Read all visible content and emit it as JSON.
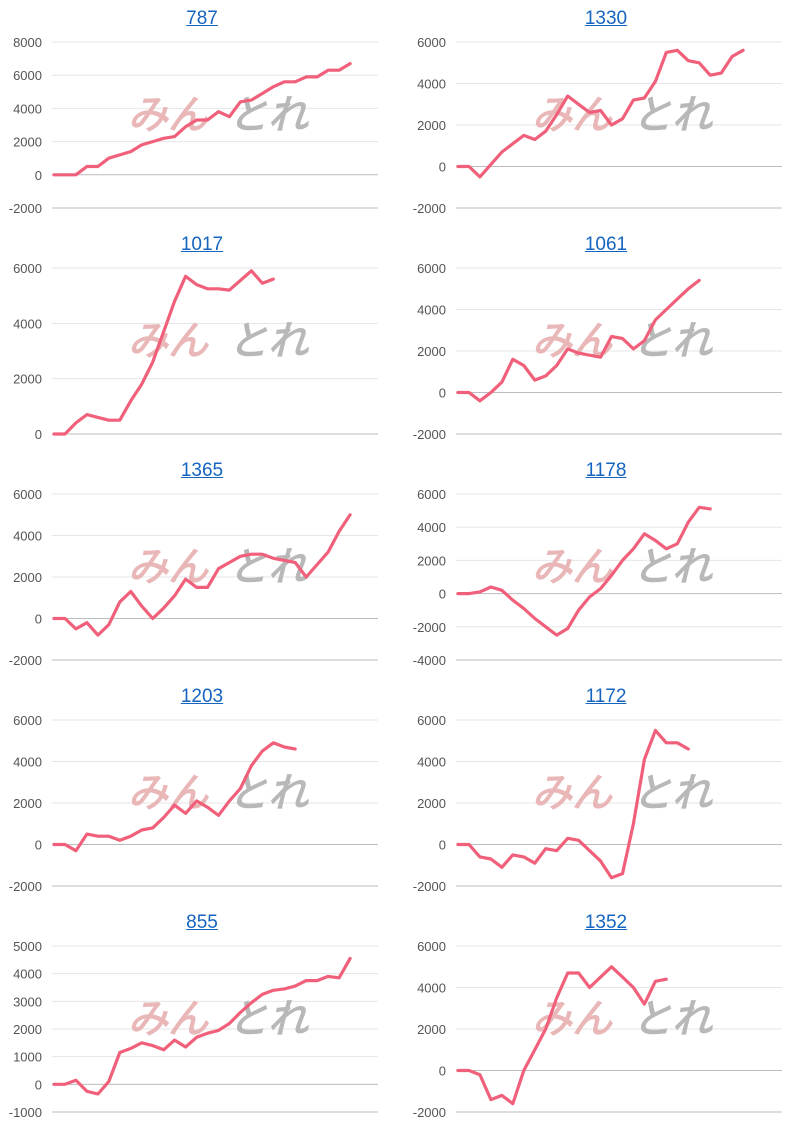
{
  "style": {
    "line_color": "#f0607a",
    "grid_color": "#e6e6e6",
    "axis_color": "#bdbdbd",
    "link_color": "#1565c0",
    "watermark_pink": "#e8b4b4",
    "watermark_gray": "#b5b5b5"
  },
  "chart_data": [
    {
      "type": "line",
      "title": "787",
      "ylim": [
        -2000,
        8000
      ],
      "yticks": [
        "8000",
        "6000",
        "4000",
        "2000",
        "0",
        "-2000"
      ],
      "grid": true,
      "series": [
        {
          "values": [
            0,
            0,
            0,
            500,
            500,
            1000,
            1200,
            1400,
            1800,
            2000,
            2200,
            2300,
            2900,
            3300,
            3300,
            3800,
            3500,
            4400,
            4500,
            4900,
            5300,
            5600,
            5600,
            5900,
            5900,
            6300,
            6300,
            6700
          ]
        }
      ]
    },
    {
      "type": "line",
      "title": "1330",
      "ylim": [
        -2000,
        6000
      ],
      "yticks": [
        "6000",
        "4000",
        "2000",
        "0",
        "-2000"
      ],
      "grid": true,
      "series": [
        {
          "values": [
            0,
            0,
            -500,
            100,
            700,
            1100,
            1500,
            1300,
            1700,
            2500,
            3400,
            3000,
            2600,
            2700,
            2000,
            2300,
            3200,
            3300,
            4100,
            5500,
            5600,
            5100,
            5000,
            4400,
            4500,
            5300,
            5600
          ]
        }
      ]
    },
    {
      "type": "line",
      "title": "1017",
      "ylim": [
        0,
        6000
      ],
      "yticks": [
        "6000",
        "4000",
        "2000",
        "0"
      ],
      "grid": true,
      "series": [
        {
          "values": [
            0,
            0,
            400,
            700,
            600,
            500,
            500,
            1200,
            1800,
            2600,
            3700,
            4800,
            5700,
            5400,
            5250,
            5250,
            5200,
            5550,
            5900,
            5450,
            5600
          ]
        }
      ]
    },
    {
      "type": "line",
      "title": "1061",
      "ylim": [
        -2000,
        6000
      ],
      "yticks": [
        "6000",
        "4000",
        "2000",
        "0",
        "-2000"
      ],
      "grid": true,
      "series": [
        {
          "values": [
            0,
            0,
            -400,
            0,
            500,
            1600,
            1300,
            600,
            800,
            1300,
            2100,
            1900,
            1800,
            1700,
            2700,
            2600,
            2100,
            2500,
            3500,
            4000,
            4500,
            5000,
            5400
          ]
        }
      ]
    },
    {
      "type": "line",
      "title": "1365",
      "ylim": [
        -2000,
        6000
      ],
      "yticks": [
        "6000",
        "4000",
        "2000",
        "0",
        "-2000"
      ],
      "grid": true,
      "series": [
        {
          "values": [
            0,
            0,
            -500,
            -200,
            -800,
            -300,
            800,
            1300,
            600,
            0,
            500,
            1100,
            1900,
            1500,
            1500,
            2400,
            2700,
            3000,
            3100,
            3100,
            2900,
            2800,
            2700,
            2000,
            2600,
            3200,
            4200,
            5000
          ]
        }
      ]
    },
    {
      "type": "line",
      "title": "1178",
      "ylim": [
        -4000,
        6000
      ],
      "yticks": [
        "6000",
        "4000",
        "2000",
        "0",
        "-2000",
        "-4000"
      ],
      "grid": true,
      "series": [
        {
          "values": [
            0,
            0,
            100,
            400,
            200,
            -400,
            -900,
            -1500,
            -2000,
            -2500,
            -2100,
            -1000,
            -200,
            300,
            1100,
            2000,
            2700,
            3600,
            3200,
            2700,
            3000,
            4300,
            5200,
            5100
          ]
        }
      ]
    },
    {
      "type": "line",
      "title": "1203",
      "ylim": [
        -2000,
        6000
      ],
      "yticks": [
        "6000",
        "4000",
        "2000",
        "0",
        "-2000"
      ],
      "grid": true,
      "series": [
        {
          "values": [
            0,
            0,
            -300,
            500,
            400,
            400,
            200,
            400,
            700,
            800,
            1300,
            1900,
            1500,
            2100,
            1800,
            1400,
            2100,
            2700,
            3800,
            4500,
            4900,
            4700,
            4600
          ]
        }
      ]
    },
    {
      "type": "line",
      "title": "1172",
      "ylim": [
        -2000,
        6000
      ],
      "yticks": [
        "6000",
        "4000",
        "2000",
        "0",
        "-2000"
      ],
      "grid": true,
      "series": [
        {
          "values": [
            0,
            0,
            -600,
            -700,
            -1100,
            -500,
            -600,
            -900,
            -200,
            -300,
            300,
            200,
            -300,
            -800,
            -1600,
            -1400,
            1000,
            4100,
            5500,
            4900,
            4900,
            4600
          ]
        }
      ]
    },
    {
      "type": "line",
      "title": "855",
      "ylim": [
        -1000,
        5000
      ],
      "yticks": [
        "5000",
        "4000",
        "3000",
        "2000",
        "1000",
        "0",
        "-1000"
      ],
      "grid": true,
      "series": [
        {
          "values": [
            0,
            0,
            150,
            -250,
            -350,
            100,
            1150,
            1300,
            1500,
            1400,
            1250,
            1600,
            1350,
            1700,
            1850,
            1950,
            2200,
            2600,
            2950,
            3250,
            3400,
            3450,
            3550,
            3750,
            3750,
            3900,
            3850,
            4550
          ]
        }
      ]
    },
    {
      "type": "line",
      "title": "1352",
      "ylim": [
        -2000,
        6000
      ],
      "yticks": [
        "6000",
        "4000",
        "2000",
        "0",
        "-2000"
      ],
      "grid": true,
      "series": [
        {
          "values": [
            0,
            0,
            -200,
            -1400,
            -1200,
            -1600,
            0,
            1000,
            2000,
            3500,
            4700,
            4700,
            4000,
            4500,
            5000,
            4500,
            4000,
            3200,
            4300,
            4400
          ]
        }
      ]
    }
  ]
}
